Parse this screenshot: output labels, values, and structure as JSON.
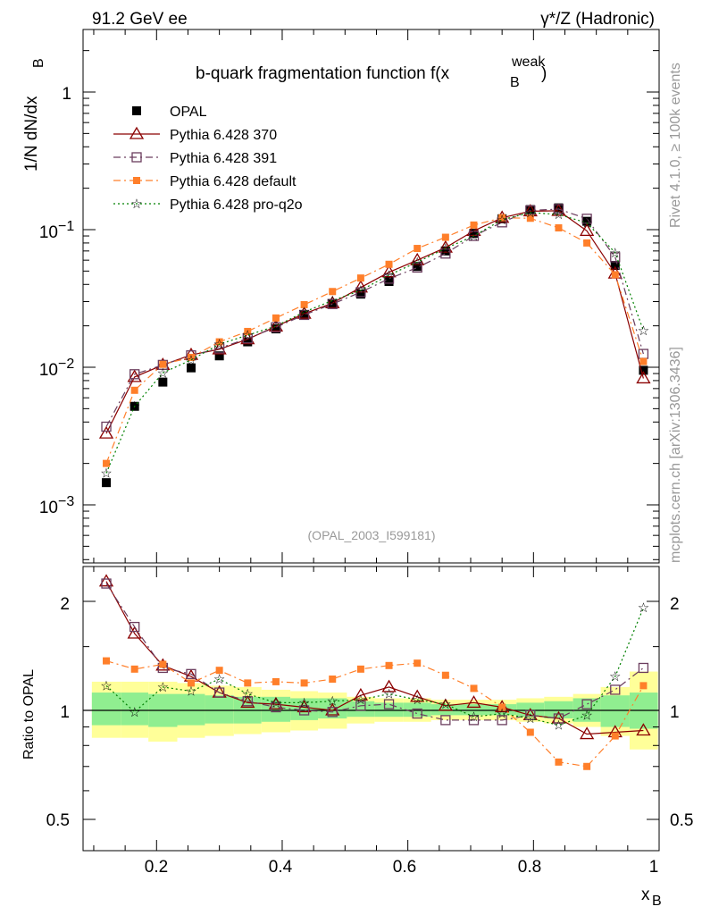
{
  "header": {
    "left": "91.2 GeV ee",
    "right": "γ*/Z (Hadronic)"
  },
  "side_labels": {
    "rivet": "Rivet 4.1.0, ≥ 100k events",
    "site": "mcplots.cern.ch [arXiv:1306.3436]"
  },
  "colors": {
    "opal": "#000000",
    "p370": "#8b0000",
    "p391": "#6b3d5e",
    "default": "#ff7f2a",
    "proq2o": "#008000",
    "band_inner": "#90ee90",
    "band_outer": "#ffff99"
  },
  "chart_data": [
    {
      "type": "line",
      "title": "b-quark fragmentation function f(x_B^weak)",
      "title_main": "b-quark fragmentation function f(x",
      "title_sub": "B",
      "title_sup": "weak",
      "title_close": ")",
      "ylabel": "1/N  dN/dx_B",
      "ylabel_main": "1/N  dN/dx",
      "ylabel_sub": "B",
      "yscale": "log",
      "ylim": [
        0.0004,
        2.5
      ],
      "xlim": [
        0.083,
        1.0
      ],
      "analysis": "(OPAL_2003_I599181)",
      "y_ticks": [
        {
          "v": 1,
          "label": "1"
        },
        {
          "v": 0.1,
          "label": "10",
          "exp": "−1"
        },
        {
          "v": 0.01,
          "label": "10",
          "exp": "−2"
        },
        {
          "v": 0.001,
          "label": "10",
          "exp": "−3"
        }
      ],
      "x": [
        0.12,
        0.165,
        0.21,
        0.255,
        0.3,
        0.345,
        0.39,
        0.435,
        0.48,
        0.525,
        0.57,
        0.615,
        0.66,
        0.705,
        0.75,
        0.795,
        0.84,
        0.885,
        0.93,
        0.975
      ],
      "series": [
        {
          "name": "OPAL",
          "key": "opal",
          "style": "data",
          "values": [
            0.00145,
            0.0052,
            0.0078,
            0.0099,
            0.0121,
            0.0153,
            0.019,
            0.024,
            0.029,
            0.034,
            0.042,
            0.054,
            0.07,
            0.094,
            0.12,
            0.14,
            0.144,
            0.115,
            0.055,
            0.0095
          ]
        },
        {
          "name": "Pythia 6.428 370",
          "key": "p370",
          "style": "triangle",
          "values": [
            0.0033,
            0.0085,
            0.0104,
            0.0123,
            0.0135,
            0.016,
            0.0198,
            0.0245,
            0.0292,
            0.038,
            0.049,
            0.06,
            0.074,
            0.098,
            0.122,
            0.136,
            0.137,
            0.098,
            0.048,
            0.0083
          ]
        },
        {
          "name": "Pythia 6.428 391",
          "key": "p391",
          "style": "square",
          "values": [
            0.0037,
            0.0089,
            0.0104,
            0.0122,
            0.0137,
            0.0162,
            0.0195,
            0.024,
            0.0288,
            0.0351,
            0.044,
            0.053,
            0.067,
            0.09,
            0.113,
            0.138,
            0.141,
            0.12,
            0.063,
            0.0125
          ]
        },
        {
          "name": "Pythia 6.428 default",
          "key": "default",
          "style": "filled-square",
          "values": [
            0.002,
            0.0068,
            0.0105,
            0.0118,
            0.0153,
            0.0182,
            0.0228,
            0.0285,
            0.0355,
            0.0445,
            0.056,
            0.073,
            0.088,
            0.108,
            0.122,
            0.121,
            0.103,
            0.08,
            0.047,
            0.011
          ]
        },
        {
          "name": "Pythia 6.428 pro-q2o",
          "key": "proq2o",
          "style": "star",
          "values": [
            0.0017,
            0.0052,
            0.0091,
            0.0113,
            0.0147,
            0.0171,
            0.0199,
            0.0252,
            0.0305,
            0.0362,
            0.0468,
            0.058,
            0.073,
            0.09,
            0.118,
            0.133,
            0.129,
            0.112,
            0.068,
            0.0185
          ]
        }
      ]
    },
    {
      "type": "line",
      "ylabel": "Ratio to OPAL",
      "yscale": "log",
      "ylim": [
        0.41,
        2.4
      ],
      "x_label": "x",
      "x_label_sub": "B",
      "x_ticks": [
        {
          "v": 0.2,
          "label": "0.2"
        },
        {
          "v": 0.4,
          "label": "0.4"
        },
        {
          "v": 0.6,
          "label": "0.6"
        },
        {
          "v": 0.8,
          "label": "0.8"
        },
        {
          "v": 1.0,
          "label": "1"
        }
      ],
      "y_ticks": [
        {
          "v": 2,
          "label": "2"
        },
        {
          "v": 1,
          "label": "1"
        },
        {
          "v": 0.5,
          "label": "0.5"
        }
      ],
      "band_edges": [
        0.097,
        0.143,
        0.187,
        0.233,
        0.277,
        0.323,
        0.367,
        0.413,
        0.457,
        0.503,
        0.547,
        0.593,
        0.637,
        0.683,
        0.727,
        0.773,
        0.817,
        0.863,
        0.907,
        0.953,
        0.998
      ],
      "band_inner": [
        [
          0.91,
          1.12
        ],
        [
          0.91,
          1.12
        ],
        [
          0.9,
          1.11
        ],
        [
          0.91,
          1.11
        ],
        [
          0.92,
          1.1
        ],
        [
          0.92,
          1.09
        ],
        [
          0.93,
          1.09
        ],
        [
          0.94,
          1.08
        ],
        [
          0.95,
          1.08
        ],
        [
          0.96,
          1.06
        ],
        [
          0.96,
          1.05
        ],
        [
          0.96,
          1.05
        ],
        [
          0.97,
          1.04
        ],
        [
          0.97,
          1.04
        ],
        [
          0.97,
          1.04
        ],
        [
          0.96,
          1.05
        ],
        [
          0.95,
          1.06
        ],
        [
          0.93,
          1.08
        ],
        [
          0.9,
          1.1
        ],
        [
          0.89,
          1.12
        ]
      ],
      "band_outer": [
        [
          0.84,
          1.2
        ],
        [
          0.84,
          1.2
        ],
        [
          0.82,
          1.2
        ],
        [
          0.84,
          1.19
        ],
        [
          0.85,
          1.17
        ],
        [
          0.86,
          1.16
        ],
        [
          0.87,
          1.14
        ],
        [
          0.88,
          1.13
        ],
        [
          0.89,
          1.12
        ],
        [
          0.92,
          1.09
        ],
        [
          0.93,
          1.08
        ],
        [
          0.93,
          1.08
        ],
        [
          0.94,
          1.07
        ],
        [
          0.94,
          1.07
        ],
        [
          0.94,
          1.07
        ],
        [
          0.93,
          1.08
        ],
        [
          0.92,
          1.09
        ],
        [
          0.9,
          1.11
        ],
        [
          0.85,
          1.16
        ],
        [
          0.78,
          1.28
        ]
      ],
      "series": [
        {
          "name": "Pythia 6.428 370",
          "key": "p370",
          "values": [
            2.27,
            1.63,
            1.33,
            1.24,
            1.12,
            1.05,
            1.04,
            1.02,
            1.0,
            1.1,
            1.16,
            1.09,
            1.03,
            1.05,
            1.02,
            0.97,
            0.95,
            0.86,
            0.87,
            0.88
          ]
        },
        {
          "name": "Pythia 6.428 391",
          "key": "p391",
          "values": [
            2.24,
            1.7,
            1.31,
            1.26,
            1.12,
            1.06,
            1.02,
            1.0,
            0.99,
            1.03,
            1.04,
            0.98,
            0.94,
            0.94,
            0.94,
            0.97,
            0.95,
            1.04,
            1.14,
            1.31
          ]
        },
        {
          "name": "Pythia 6.428 default",
          "key": "default",
          "values": [
            1.37,
            1.3,
            1.34,
            1.19,
            1.29,
            1.19,
            1.2,
            1.19,
            1.22,
            1.3,
            1.33,
            1.35,
            1.25,
            1.15,
            1.02,
            0.87,
            0.72,
            0.7,
            0.85,
            1.17
          ]
        },
        {
          "name": "Pythia 6.428 pro-q2o",
          "key": "proq2o",
          "values": [
            1.17,
            0.99,
            1.16,
            1.13,
            1.22,
            1.11,
            1.05,
            1.05,
            1.06,
            1.07,
            1.11,
            1.07,
            1.04,
            0.96,
            0.98,
            0.95,
            0.91,
            0.97,
            1.24,
            1.92
          ]
        }
      ]
    }
  ]
}
